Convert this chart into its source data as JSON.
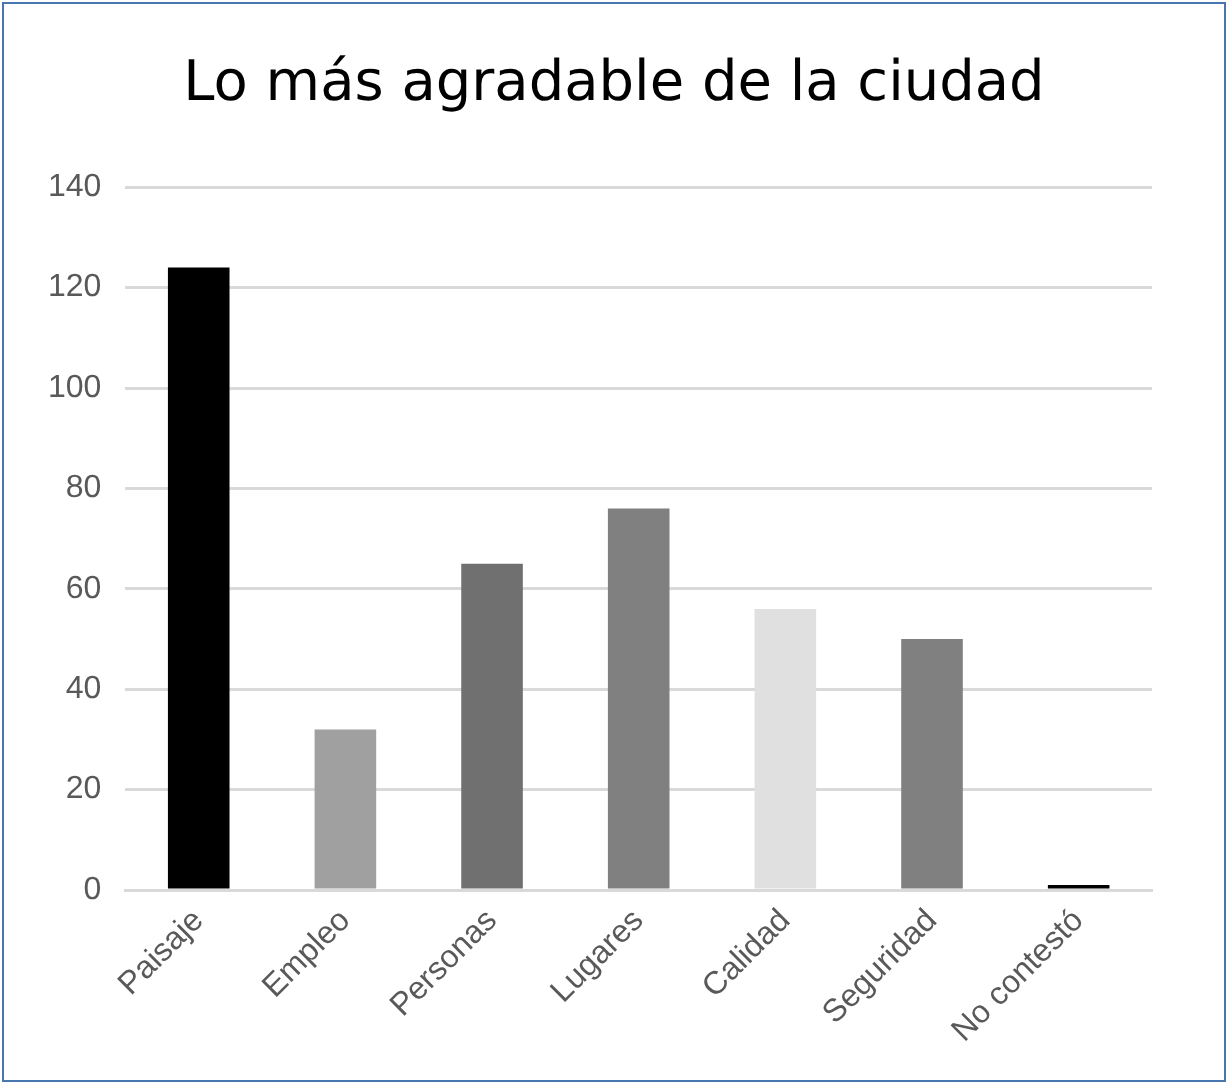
{
  "chart_data": {
    "type": "bar",
    "title": "Lo más agradable de la ciudad",
    "categories": [
      "Paisaje",
      "Empleo",
      "Personas",
      "Lugares",
      "Calidad",
      "Seguridad",
      "No contestó"
    ],
    "values": [
      124,
      32,
      65,
      76,
      56,
      50,
      1
    ],
    "colors": [
      "#000000",
      "#a0a0a0",
      "#707070",
      "#808080",
      "#e0e0e0",
      "#808080",
      "#000000"
    ],
    "ylim": [
      0,
      140
    ],
    "yticks": [
      0,
      20,
      40,
      60,
      80,
      100,
      120,
      140
    ],
    "grid": "y"
  }
}
